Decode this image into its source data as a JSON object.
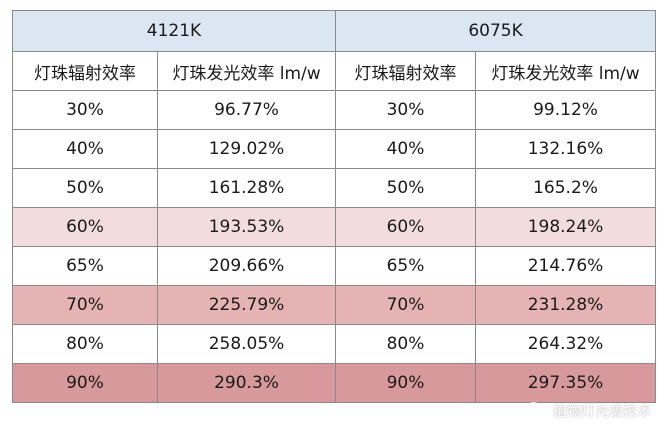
{
  "table": {
    "groups": [
      {
        "label": "4121K"
      },
      {
        "label": "6075K"
      }
    ],
    "columns": [
      "灯珠辐射效率",
      "灯珠发光效率 lm/w",
      "灯珠辐射效率",
      "灯珠发光效率 lm/w"
    ],
    "rows": [
      {
        "values": [
          "30%",
          "96.77%",
          "30%",
          "99.12%"
        ],
        "tint": "none"
      },
      {
        "values": [
          "40%",
          "129.02%",
          "40%",
          "132.16%"
        ],
        "tint": "none"
      },
      {
        "values": [
          "50%",
          "161.28%",
          "50%",
          "165.2%"
        ],
        "tint": "none"
      },
      {
        "values": [
          "60%",
          "193.53%",
          "60%",
          "198.24%"
        ],
        "tint": "light-pink"
      },
      {
        "values": [
          "65%",
          "209.66%",
          "65%",
          "214.76%"
        ],
        "tint": "none"
      },
      {
        "values": [
          "70%",
          "225.79%",
          "70%",
          "231.28%"
        ],
        "tint": "pink"
      },
      {
        "values": [
          "80%",
          "258.05%",
          "80%",
          "264.32%"
        ],
        "tint": "none"
      },
      {
        "values": [
          "90%",
          "290.3%",
          "90%",
          "297.35%"
        ],
        "tint": "dark-pink"
      }
    ],
    "colors": {
      "header_bg": "#dbe6f3",
      "light_pink": "#f3dcdd",
      "pink": "#e6b3b5",
      "dark_pink": "#d8999c",
      "border": "#8a8a8a"
    }
  },
  "watermark": {
    "icon": "wechat-icon",
    "text": "植物灯光谱技术"
  }
}
